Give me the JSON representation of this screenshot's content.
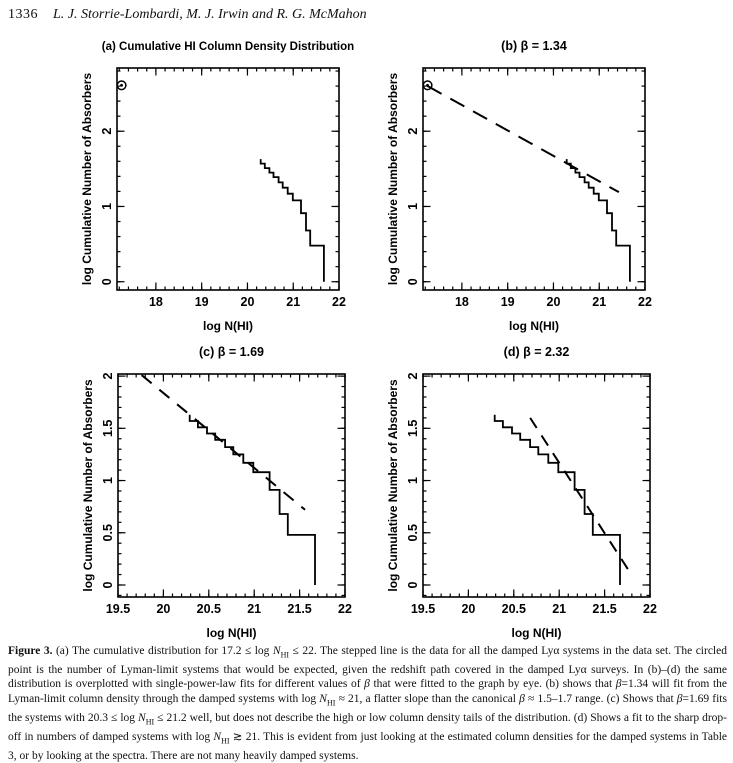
{
  "header": {
    "page_number": "1336",
    "running_title": "L. J. Storrie-Lombardi, M. J. Irwin and R. G. McMahon"
  },
  "chart_data": {
    "type": "line",
    "subtype": "cumulative-step-distribution",
    "shared": {
      "xlabel": "log N(HI)",
      "ylabel": "log Cumulative Number of Absorbers",
      "ink_color": "#000000",
      "step_curve": {
        "comment_visible_only": "stepped cumulative distribution of damped Lya systems",
        "start": [
          20.29,
          1.63
        ],
        "levels": [
          [
            20.29,
            1.57
          ],
          [
            20.38,
            1.51
          ],
          [
            20.48,
            1.45
          ],
          [
            20.57,
            1.39
          ],
          [
            20.68,
            1.32
          ],
          [
            20.77,
            1.25
          ],
          [
            20.88,
            1.17
          ],
          [
            20.99,
            1.08
          ],
          [
            21.17,
            0.91
          ],
          [
            21.28,
            0.68
          ],
          [
            21.37,
            0.48
          ]
        ],
        "end": [
          21.67,
          0.0
        ]
      },
      "lyman_limit_point": [
        17.25,
        2.61
      ]
    },
    "panels": [
      {
        "id": "a",
        "title": "(a)  Cumulative HI Column Density Distribution",
        "beta": null,
        "xlim": [
          17.15,
          22
        ],
        "ylim": [
          -0.11,
          2.84
        ],
        "x_major": [
          18,
          19,
          20,
          21,
          22
        ],
        "x_minor_step": 0.2,
        "y_major": [
          0,
          1,
          2
        ],
        "y_minor_step": 0.2,
        "show_point": true,
        "fit_line": null
      },
      {
        "id": "b",
        "title": "(b)  β = 1.34",
        "beta": 1.34,
        "xlim": [
          17.15,
          22
        ],
        "ylim": [
          -0.11,
          2.84
        ],
        "x_major": [
          18,
          19,
          20,
          21,
          22
        ],
        "x_minor_step": 0.2,
        "y_major": [
          0,
          1,
          2
        ],
        "y_minor_step": 0.2,
        "show_point": true,
        "fit_line": {
          "from": [
            17.25,
            2.6
          ],
          "to": [
            21.43,
            1.19
          ],
          "dash": [
            16,
            10
          ]
        }
      },
      {
        "id": "c",
        "title": "(c)  β = 1.69",
        "beta": 1.69,
        "xlim": [
          19.5,
          22
        ],
        "ylim": [
          -0.115,
          2.02
        ],
        "x_major": [
          19.5,
          20,
          20.5,
          21,
          21.5,
          22
        ],
        "x_minor_step": 0.1,
        "y_major": [
          0,
          0.5,
          1,
          1.5,
          2
        ],
        "y_minor_step": 0.1,
        "show_point": false,
        "fit_line": {
          "from": [
            19.76,
            2.01
          ],
          "to": [
            21.56,
            0.72
          ],
          "dash": [
            13,
            10
          ]
        }
      },
      {
        "id": "d",
        "title": "(d)  β = 2.32",
        "beta": 2.32,
        "xlim": [
          19.5,
          22
        ],
        "ylim": [
          -0.115,
          2.02
        ],
        "x_major": [
          19.5,
          20,
          20.5,
          21,
          21.5,
          22
        ],
        "x_minor_step": 0.1,
        "y_major": [
          0,
          0.5,
          1,
          1.5,
          2
        ],
        "y_minor_step": 0.1,
        "show_point": false,
        "fit_line": {
          "from": [
            20.68,
            1.6
          ],
          "to": [
            21.78,
            0.12
          ],
          "dash": [
            12,
            9
          ]
        }
      }
    ]
  },
  "caption": {
    "segments": [
      {
        "t": "Figure 3.",
        "s": "b"
      },
      {
        "t": " (a) The cumulative distribution for 17.2 ≤ log ",
        "s": ""
      },
      {
        "t": "N",
        "s": "i"
      },
      {
        "t": "HI",
        "s": "sub"
      },
      {
        "t": " ≤ 22. The stepped line is the data for all the damped Lyα systems in the data set. The circled point is the number of Lyman-limit systems that would be expected, given the redshift path covered in the damped Lyα surveys. In (b)–(d) the same distribution is overplotted with single-power-law fits for different values of ",
        "s": ""
      },
      {
        "t": "β",
        "s": "i"
      },
      {
        "t": " that were fitted to the graph by eye. (b) shows that ",
        "s": ""
      },
      {
        "t": "β",
        "s": "i"
      },
      {
        "t": "=1.34 will fit from the Lyman-limit column density through the damped systems with log ",
        "s": ""
      },
      {
        "t": "N",
        "s": "i"
      },
      {
        "t": "HI",
        "s": "sub"
      },
      {
        "t": " ≈ 21, a flatter slope than the canonical ",
        "s": ""
      },
      {
        "t": "β",
        "s": "i"
      },
      {
        "t": " ≈ 1.5–1.7 range. (c) Shows that ",
        "s": ""
      },
      {
        "t": "β",
        "s": "i"
      },
      {
        "t": "=1.69 fits the systems with 20.3 ≤ log ",
        "s": ""
      },
      {
        "t": "N",
        "s": "i"
      },
      {
        "t": "HI",
        "s": "sub"
      },
      {
        "t": " ≤ 21.2 well, but does not describe the high or low column density tails of the distribution. (d) Shows a fit to the sharp drop-off in numbers of damped systems with log ",
        "s": ""
      },
      {
        "t": "N",
        "s": "i"
      },
      {
        "t": "HI",
        "s": "sub"
      },
      {
        "t": " ≳ 21. This is evident from just looking at the estimated column densities for the damped systems in Table 3, or by looking at the spectra. There are not many heavily damped systems.",
        "s": ""
      }
    ]
  }
}
